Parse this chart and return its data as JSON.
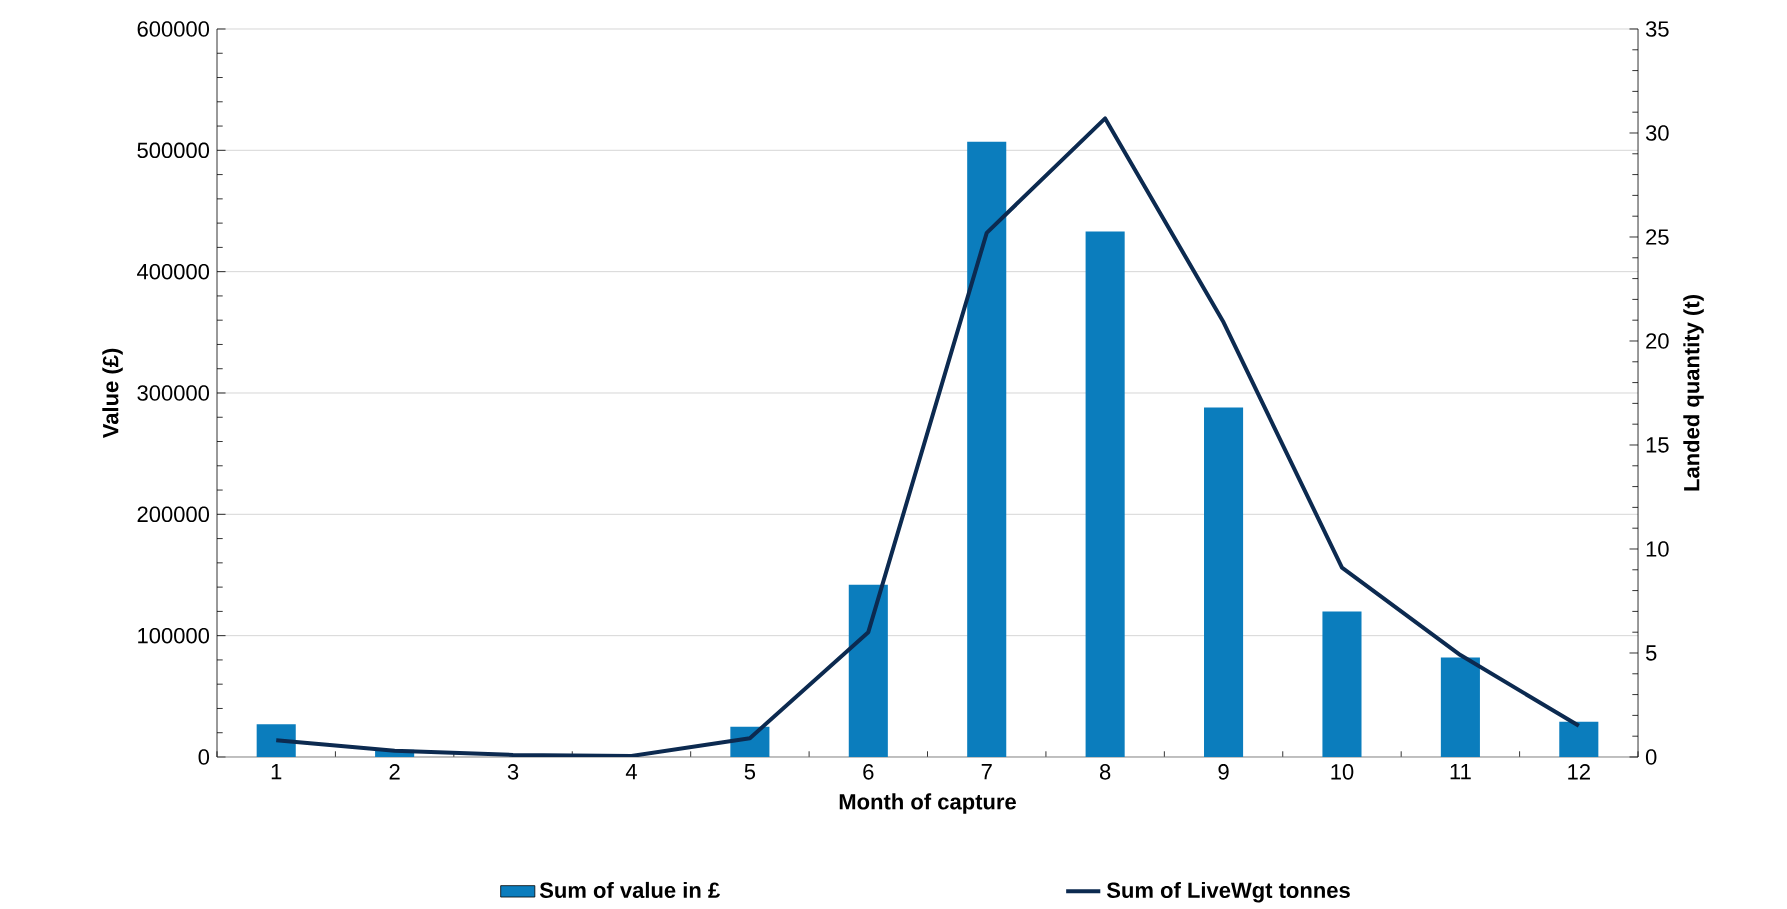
{
  "chart_data": {
    "type": "bar",
    "xlabel": "Month of capture",
    "ylabel": "Value (£)",
    "y2label": "Landed quantity (t)",
    "categories": [
      "1",
      "2",
      "3",
      "4",
      "5",
      "6",
      "7",
      "8",
      "9",
      "10",
      "11",
      "12"
    ],
    "series": [
      {
        "name": "Sum of value in £",
        "color": "#0b7dbd",
        "values": [
          27000,
          6000,
          null,
          null,
          25000,
          142000,
          507000,
          433000,
          288000,
          120000,
          82000,
          29000
        ]
      },
      {
        "name": "Sum of LiveWgt tonnes",
        "type": "line",
        "axis": "y2",
        "color": "#0c2a50",
        "values": [
          0.8,
          0.3,
          0.1,
          0.05,
          0.9,
          6.0,
          25.2,
          30.7,
          20.9,
          9.1,
          4.9,
          1.5
        ]
      }
    ],
    "ylim": [
      0,
      600000
    ],
    "yticks": [
      0,
      100000,
      200000,
      300000,
      400000,
      500000,
      600000
    ],
    "y2lim": [
      0,
      35
    ],
    "y2ticks": [
      0,
      5,
      10,
      15,
      20,
      25,
      30,
      35
    ],
    "grid": "y",
    "legend": "bottom",
    "marker": "none"
  }
}
